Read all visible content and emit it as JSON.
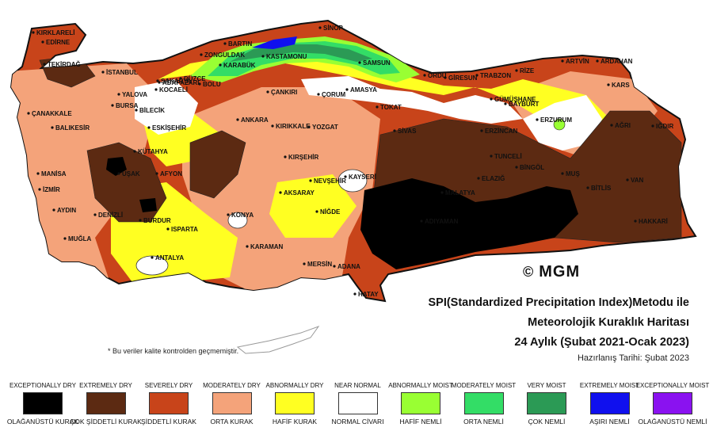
{
  "map": {
    "title_line1": "SPI(Standardized Precipitation Index)Metodu ile",
    "title_line2": "Meteorolojik Kuraklık Haritası",
    "title_line3": "24 Aylık (Şubat 2021-Ocak 2023)",
    "prepared_date": "Hazırlanış Tarihi: Şubat 2023",
    "logo_text": "MGM",
    "logo_symbol": "©",
    "footnote": "* Bu veriler kalite kontrolden geçmemiştir.",
    "cities": [
      "KIRKLARELİ",
      "EDİRNE",
      "TEKİRDAĞ",
      "İSTANBUL",
      "YALOVA",
      "BURSA",
      "ÇANAKKALE",
      "BALIKESİR",
      "BİLECİK",
      "ESKİŞEHİR",
      "KÜTAHYA",
      "MANİSA",
      "İZMİR",
      "UŞAK",
      "AFYON",
      "AYDIN",
      "DENİZLİ",
      "MUĞLA",
      "BURDUR",
      "ISPARTA",
      "ANTALYA",
      "KONYA",
      "KARAMAN",
      "MERSİN",
      "ADANA",
      "HATAY",
      "NİĞDE",
      "AKSARAY",
      "NEVŞEHİR",
      "KAYSERİ",
      "KIRŞEHİR",
      "KIRIKKALE",
      "ANKARA",
      "ÇANKIRI",
      "KARABÜK",
      "BARTIN",
      "ZONGULDAK",
      "DÜZCE",
      "BOLU",
      "SAKARYA",
      "KOCAELİ",
      "ADAPAZARI",
      "KASTAMONU",
      "SİNOP",
      "SAMSUN",
      "ÇORUM",
      "AMASYA",
      "TOKAT",
      "YOZGAT",
      "SİVAS",
      "ORDU",
      "GİRESUN",
      "TRABZON",
      "RİZE",
      "ARTVİN",
      "ARDAHAN",
      "GÜMÜŞHANE",
      "BAYBURT",
      "ERZURUM",
      "KARS",
      "AĞRI",
      "IĞDIR",
      "ERZİNCAN",
      "TUNCELİ",
      "ELAZIĞ",
      "MALATYA",
      "BİNGÖL",
      "MUŞ",
      "BİTLİS",
      "VAN",
      "HAKKARİ",
      "ADIYAMAN"
    ]
  },
  "legend": [
    {
      "en": "EXCEPTIONALLY DRY",
      "tr": "OLAĞANÜSTÜ KURAK",
      "color": "#000000"
    },
    {
      "en": "EXTREMELY DRY",
      "tr": "ÇOK ŞİDDETLİ KURAK",
      "color": "#5c2a12"
    },
    {
      "en": "SEVERELY DRY",
      "tr": "ŞİDDETLİ KURAK",
      "color": "#c8441a"
    },
    {
      "en": "MODERATELY DRY",
      "tr": "ORTA KURAK",
      "color": "#f4a37a"
    },
    {
      "en": "ABNORMALLY DRY",
      "tr": "HAFİF KURAK",
      "color": "#ffff22"
    },
    {
      "en": "NEAR NORMAL",
      "tr": "NORMAL CİVARI",
      "color": "#ffffff"
    },
    {
      "en": "ABNORMALLY MOIST",
      "tr": "HAFİF NEMLİ",
      "color": "#99ff33"
    },
    {
      "en": "MODERATELY MOIST",
      "tr": "ORTA NEMLİ",
      "color": "#33dd66"
    },
    {
      "en": "VERY MOIST",
      "tr": "ÇOK NEMLİ",
      "color": "#2b9a55"
    },
    {
      "en": "EXTREMELY MOIST",
      "tr": "AŞIRI NEMLİ",
      "color": "#1010ee"
    },
    {
      "en": "EXCEPTIONALLY MOIST",
      "tr": "OLAĞANÜSTÜ NEMLİ",
      "color": "#8a12f0"
    }
  ]
}
